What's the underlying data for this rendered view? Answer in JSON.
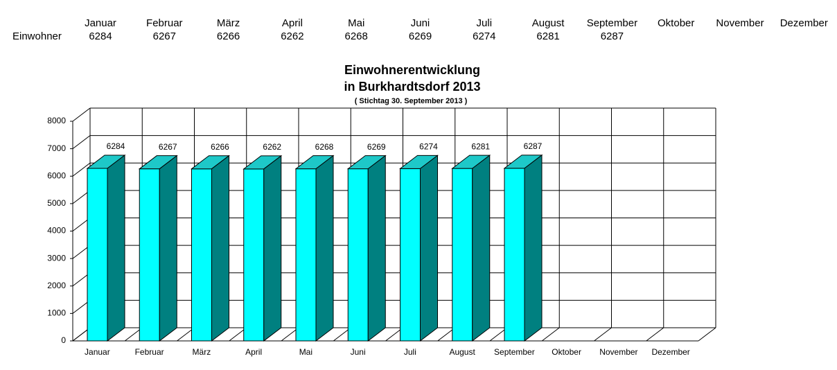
{
  "table": {
    "row_label": "Einwohner"
  },
  "chart_data": {
    "type": "bar3d",
    "title": [
      "Einwohnerentwicklung",
      "in Burkhardtsdorf 2013"
    ],
    "subtitle": "( Stichtag 30. September 2013 )",
    "categories": [
      "Januar",
      "Februar",
      "März",
      "April",
      "Mai",
      "Juni",
      "Juli",
      "August",
      "September",
      "Oktober",
      "November",
      "Dezember"
    ],
    "values": [
      6284,
      6267,
      6266,
      6262,
      6268,
      6269,
      6274,
      6281,
      6287,
      null,
      null,
      null
    ],
    "colors": {
      "front": "#00ffff",
      "top": "#1ec8c8",
      "side": "#008080"
    },
    "ylim": [
      0,
      8000
    ],
    "yticks": [
      0,
      1000,
      2000,
      3000,
      4000,
      5000,
      6000,
      7000,
      8000
    ],
    "grid": true
  }
}
